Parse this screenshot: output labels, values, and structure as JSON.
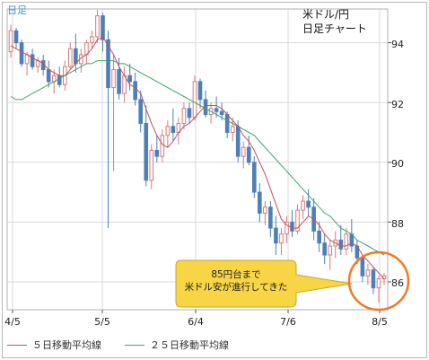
{
  "period_tag": "日足",
  "title_lines": [
    "米ドル/円",
    "日足チャート"
  ],
  "callout": {
    "lines": [
      "85円台まで",
      "米ドル安が進行してきた"
    ],
    "fill": "#f7d545",
    "highlight_ring": "#ef7a25"
  },
  "legend": [
    {
      "label": "５日移動平均線",
      "color": "#c85058"
    },
    {
      "label": "２５日移動平均線",
      "color": "#3aa66a"
    }
  ],
  "colors": {
    "up": "#d87a7a",
    "down": "#4f7fb8",
    "ma5": "#c85058",
    "ma25": "#3aa66a",
    "grid": "#d9d9d9",
    "border": "#b0b0b0"
  },
  "chart_data": {
    "type": "candlestick",
    "x_tick_labels": [
      "4/5",
      "5/5",
      "6/4",
      "7/6",
      "8/5"
    ],
    "y_tick_labels": [
      "86",
      "88",
      "90",
      "92",
      "94"
    ],
    "ylim": [
      85,
      95.3
    ],
    "ohlc": [
      [
        93.7,
        94.6,
        93.5,
        94.4
      ],
      [
        94.4,
        94.5,
        93.8,
        94.0
      ],
      [
        94.0,
        94.1,
        93.2,
        93.3
      ],
      [
        93.3,
        93.7,
        92.9,
        93.6
      ],
      [
        93.6,
        93.8,
        93.1,
        93.2
      ],
      [
        93.2,
        93.5,
        93.0,
        93.4
      ],
      [
        93.4,
        93.6,
        92.9,
        93.1
      ],
      [
        93.1,
        93.4,
        92.5,
        92.7
      ],
      [
        92.7,
        93.1,
        92.3,
        92.9
      ],
      [
        92.9,
        93.2,
        92.5,
        92.6
      ],
      [
        92.6,
        93.4,
        92.4,
        93.2
      ],
      [
        93.2,
        94.0,
        93.1,
        93.8
      ],
      [
        93.8,
        94.3,
        93.0,
        93.3
      ],
      [
        93.3,
        93.8,
        93.0,
        93.6
      ],
      [
        93.6,
        94.1,
        93.3,
        94.0
      ],
      [
        94.0,
        94.4,
        93.8,
        94.2
      ],
      [
        94.2,
        95.1,
        94.0,
        94.9
      ],
      [
        94.9,
        95.0,
        93.7,
        94.1
      ],
      [
        94.1,
        94.4,
        87.8,
        92.5
      ],
      [
        92.5,
        93.6,
        89.7,
        93.1
      ],
      [
        93.1,
        93.5,
        92.1,
        92.3
      ],
      [
        92.3,
        93.2,
        92.0,
        92.9
      ],
      [
        92.9,
        93.3,
        92.4,
        92.7
      ],
      [
        92.7,
        93.0,
        91.9,
        92.1
      ],
      [
        92.1,
        92.4,
        91.0,
        91.3
      ],
      [
        91.3,
        91.9,
        89.2,
        89.4
      ],
      [
        89.4,
        90.6,
        89.1,
        90.4
      ],
      [
        90.4,
        90.9,
        90.0,
        90.2
      ],
      [
        90.2,
        91.1,
        90.0,
        90.9
      ],
      [
        90.9,
        91.4,
        90.5,
        91.2
      ],
      [
        91.2,
        91.8,
        90.7,
        91.0
      ],
      [
        91.0,
        91.5,
        90.6,
        91.3
      ],
      [
        91.3,
        92.0,
        91.1,
        91.8
      ],
      [
        91.8,
        92.0,
        91.3,
        91.5
      ],
      [
        91.5,
        92.9,
        91.4,
        92.7
      ],
      [
        92.7,
        92.8,
        91.8,
        92.1
      ],
      [
        92.1,
        92.4,
        91.5,
        91.6
      ],
      [
        91.6,
        92.0,
        91.3,
        91.8
      ],
      [
        91.8,
        92.2,
        91.5,
        91.7
      ],
      [
        91.7,
        92.0,
        91.4,
        91.6
      ],
      [
        91.6,
        91.7,
        90.8,
        91.0
      ],
      [
        91.0,
        91.5,
        90.7,
        91.2
      ],
      [
        91.2,
        91.4,
        90.0,
        90.2
      ],
      [
        90.2,
        90.7,
        89.8,
        90.5
      ],
      [
        90.5,
        90.9,
        89.9,
        90.0
      ],
      [
        90.0,
        90.2,
        88.8,
        89.0
      ],
      [
        89.0,
        89.3,
        88.0,
        88.3
      ],
      [
        88.3,
        88.7,
        87.9,
        88.5
      ],
      [
        88.5,
        88.7,
        87.5,
        87.8
      ],
      [
        87.8,
        88.2,
        86.9,
        87.3
      ],
      [
        87.3,
        87.8,
        86.9,
        87.6
      ],
      [
        87.6,
        88.2,
        87.3,
        88.0
      ],
      [
        88.0,
        88.4,
        87.5,
        87.7
      ],
      [
        87.7,
        88.6,
        87.6,
        88.4
      ],
      [
        88.4,
        88.9,
        88.1,
        88.7
      ],
      [
        88.7,
        89.1,
        88.2,
        88.5
      ],
      [
        88.5,
        88.8,
        87.4,
        87.7
      ],
      [
        87.7,
        88.0,
        87.0,
        87.3
      ],
      [
        87.3,
        87.6,
        86.6,
        86.9
      ],
      [
        86.9,
        87.4,
        86.4,
        87.2
      ],
      [
        87.2,
        87.7,
        86.8,
        87.4
      ],
      [
        87.4,
        87.9,
        86.9,
        87.1
      ],
      [
        87.1,
        87.8,
        86.9,
        87.6
      ],
      [
        87.6,
        88.1,
        87.0,
        87.2
      ],
      [
        87.2,
        87.4,
        86.6,
        86.8
      ],
      [
        86.8,
        86.9,
        86.0,
        86.2
      ],
      [
        86.2,
        86.6,
        85.9,
        86.4
      ],
      [
        86.4,
        86.5,
        85.6,
        85.8
      ],
      [
        85.8,
        86.2,
        85.3,
        86.1
      ],
      [
        86.1,
        86.3,
        85.9,
        86.2
      ]
    ],
    "ma5": [
      93.9,
      93.8,
      93.7,
      93.6,
      93.5,
      93.4,
      93.3,
      93.1,
      93.0,
      92.9,
      92.9,
      93.1,
      93.3,
      93.5,
      93.6,
      93.8,
      94.1,
      94.2,
      93.9,
      93.6,
      93.2,
      92.9,
      92.6,
      92.5,
      92.3,
      91.8,
      91.3,
      90.9,
      90.6,
      90.5,
      90.7,
      91.0,
      91.2,
      91.3,
      91.5,
      91.7,
      91.9,
      91.9,
      91.9,
      91.8,
      91.6,
      91.4,
      91.2,
      90.9,
      90.7,
      90.4,
      90.0,
      89.6,
      89.1,
      88.6,
      88.1,
      87.9,
      87.8,
      87.8,
      88.0,
      88.2,
      88.1,
      87.9,
      87.6,
      87.4,
      87.3,
      87.2,
      87.2,
      87.3,
      87.2,
      86.9,
      86.7,
      86.5,
      86.3,
      86.1
    ],
    "ma25": [
      92.2,
      92.1,
      92.1,
      92.2,
      92.3,
      92.4,
      92.5,
      92.6,
      92.7,
      92.8,
      92.9,
      93.0,
      93.1,
      93.2,
      93.3,
      93.3,
      93.4,
      93.4,
      93.4,
      93.4,
      93.3,
      93.3,
      93.2,
      93.1,
      93.0,
      92.9,
      92.8,
      92.7,
      92.6,
      92.5,
      92.4,
      92.3,
      92.2,
      92.1,
      92.0,
      91.9,
      91.8,
      91.7,
      91.6,
      91.5,
      91.4,
      91.3,
      91.2,
      91.1,
      91.0,
      90.9,
      90.7,
      90.5,
      90.3,
      90.1,
      89.9,
      89.7,
      89.5,
      89.3,
      89.1,
      88.9,
      88.7,
      88.5,
      88.3,
      88.2,
      88.0,
      87.8,
      87.7,
      87.6,
      87.4,
      87.3,
      87.2,
      87.1,
      87.0,
      86.9
    ]
  }
}
